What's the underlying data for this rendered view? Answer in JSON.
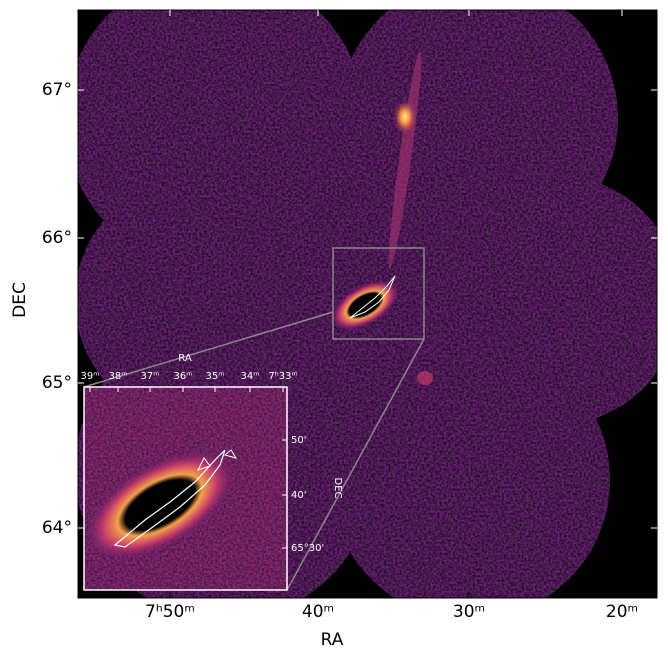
{
  "main": {
    "x_label": "RA",
    "y_label": "DEC",
    "x_ticks": [
      "7ʰ50ᵐ",
      "40ᵐ",
      "30ᵐ",
      "20ᵐ"
    ],
    "y_ticks": [
      "67°",
      "66°",
      "65°",
      "64°"
    ]
  },
  "inset": {
    "x_label": "RA",
    "y_label": "DEC",
    "x_ticks": [
      "39ᵐ",
      "38ᵐ",
      "37ᵐ",
      "36ᵐ",
      "35ᵐ",
      "34ᵐ",
      "7ʰ33ᵐ"
    ],
    "y_ticks": [
      "50'",
      "40'",
      "65°30'"
    ]
  }
}
